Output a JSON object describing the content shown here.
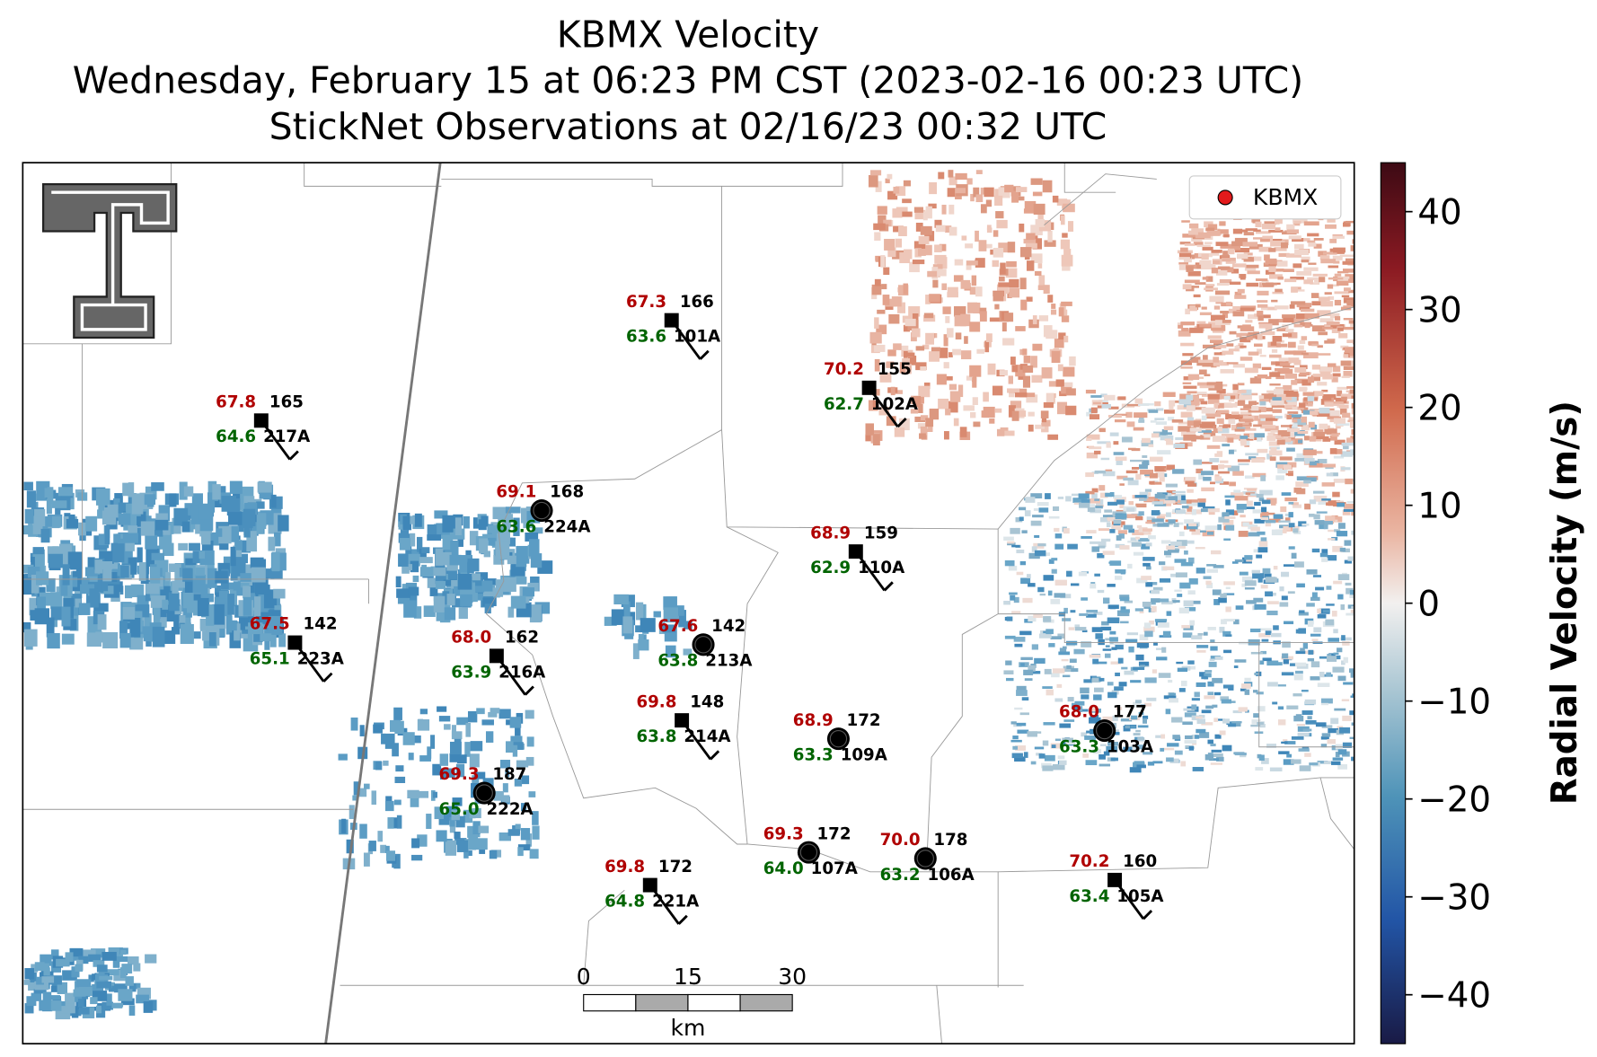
{
  "title_lines": [
    "KBMX Velocity",
    "Wednesday, February 15 at 06:23 PM CST (2023-02-16 00:23 UTC)",
    "StickNet Observations at 02/16/23 00:32 UTC"
  ],
  "legend": "KBMX",
  "colorbar": {
    "label": "Radial Velocity (m/s)",
    "lim": [
      -45,
      45
    ],
    "ticks": [
      40,
      30,
      20,
      10,
      0,
      {
        "value": -10,
        "label": "−10"
      },
      {
        "value": -20,
        "label": "−20"
      },
      {
        "value": -30,
        "label": "−30"
      },
      {
        "value": -40,
        "label": "−40"
      }
    ]
  },
  "scale_bar": {
    "ticks": [
      0,
      15,
      30
    ],
    "unit": "km"
  },
  "stations": [
    {
      "id": "101A",
      "temperature": "67.3",
      "dewpoint": "63.6",
      "value": "166"
    },
    {
      "id": "217A",
      "temperature": "67.8",
      "dewpoint": "64.6",
      "value": "165"
    },
    {
      "id": "102A",
      "temperature": "70.2",
      "dewpoint": "62.7",
      "value": "155"
    },
    {
      "id": "224A",
      "temperature": "69.1",
      "dewpoint": "63.6",
      "value": "168"
    },
    {
      "id": "110A",
      "temperature": "68.9",
      "dewpoint": "62.9",
      "value": "159"
    },
    {
      "id": "223A",
      "temperature": "67.5",
      "dewpoint": "65.1",
      "value": "142"
    },
    {
      "id": "216A",
      "temperature": "68.0",
      "dewpoint": "63.9",
      "value": "162"
    },
    {
      "id": "213A",
      "temperature": "67.6",
      "dewpoint": "63.8",
      "value": "142"
    },
    {
      "id": "214A",
      "temperature": "69.8",
      "dewpoint": "63.8",
      "value": "148"
    },
    {
      "id": "109A",
      "temperature": "68.9",
      "dewpoint": "63.3",
      "value": "172"
    },
    {
      "id": "103A",
      "temperature": "68.0",
      "dewpoint": "63.3",
      "value": "177"
    },
    {
      "id": "222A",
      "temperature": "69.3",
      "dewpoint": "65.0",
      "value": "187"
    },
    {
      "id": "107A",
      "temperature": "69.3",
      "dewpoint": "64.0",
      "value": "172"
    },
    {
      "id": "106A",
      "temperature": "70.0",
      "dewpoint": "63.2",
      "value": "178"
    },
    {
      "id": "105A",
      "temperature": "70.2",
      "dewpoint": "63.4",
      "value": "160"
    },
    {
      "id": "221A",
      "temperature": "69.8",
      "dewpoint": "64.8",
      "value": "172"
    }
  ]
}
